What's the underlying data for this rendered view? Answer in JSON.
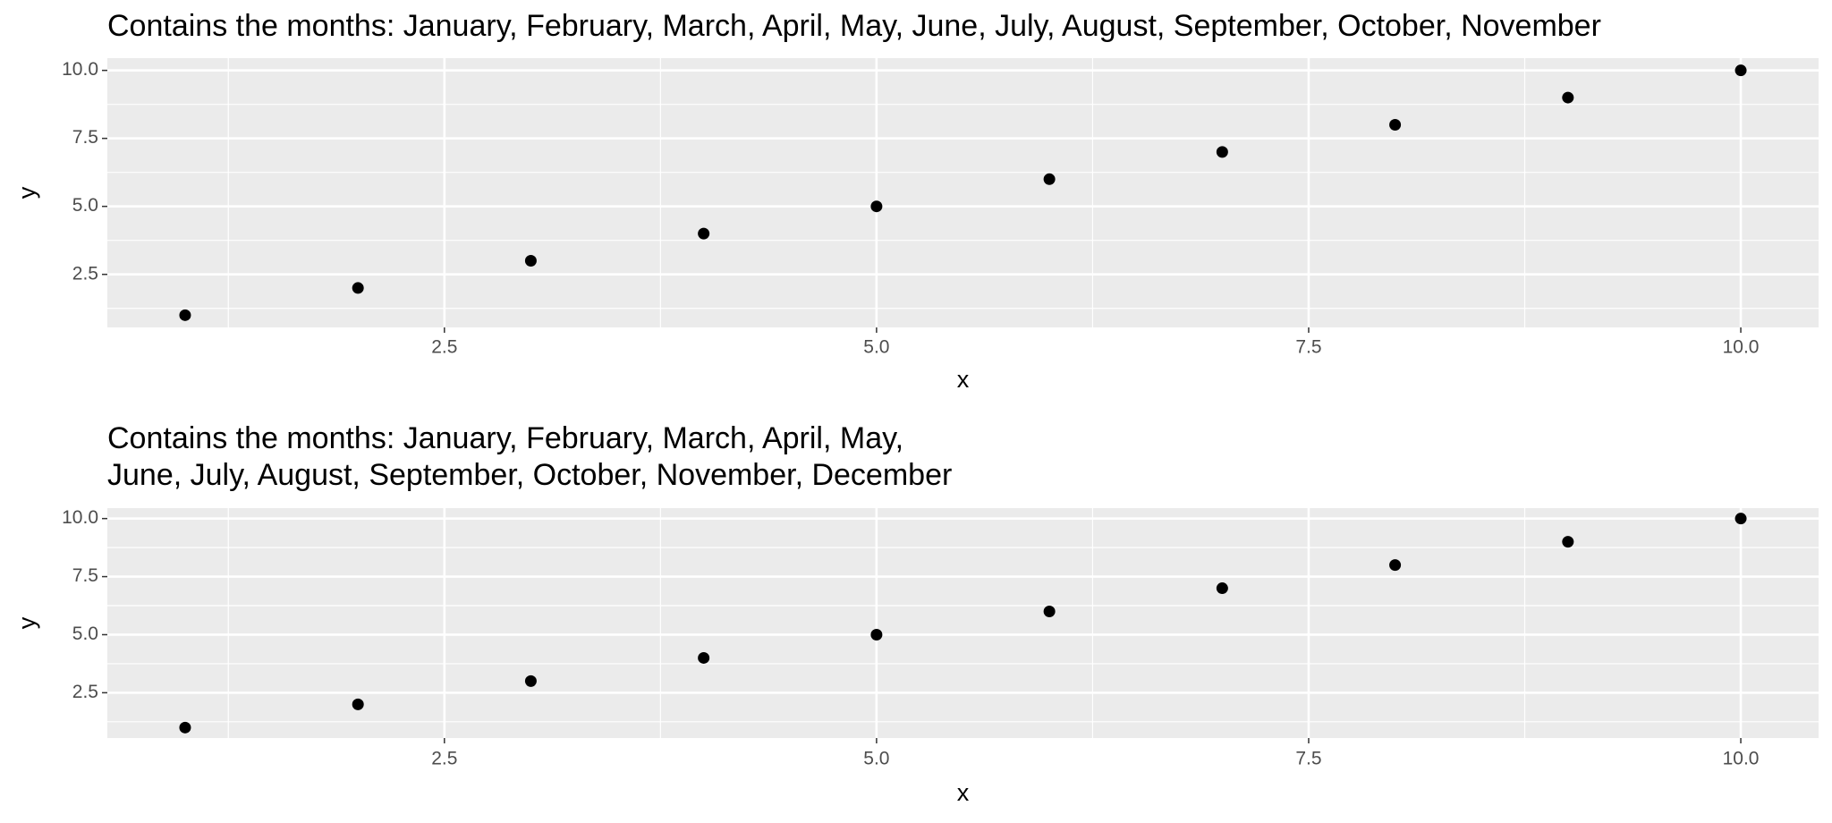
{
  "chart_data": [
    {
      "type": "scatter",
      "title": "Contains the months: January, February, March, April, May, June, July, August, September, October, November",
      "x_label": "x",
      "y_label": "y",
      "x": [
        1,
        2,
        3,
        4,
        5,
        6,
        7,
        8,
        9,
        10
      ],
      "series": [
        {
          "color": "#000000",
          "values": [
            1,
            2,
            3,
            4,
            5,
            6,
            7,
            8,
            9,
            10
          ]
        }
      ],
      "xlim": [
        0.55,
        10.45
      ],
      "ylim": [
        0.55,
        10.45
      ],
      "xticks": [
        2.5,
        {
          "value": 5,
          "label": "5.0"
        },
        7.5,
        {
          "value": 10,
          "label": "10.0"
        }
      ],
      "yticks": [
        2.5,
        {
          "value": 5,
          "label": "5.0"
        },
        7.5,
        {
          "value": 10,
          "label": "10.0"
        }
      ],
      "grid": true,
      "panel_color": "#ebebeb"
    },
    {
      "type": "scatter",
      "title": [
        "Contains the months: January, February, March, April, May,",
        " June, July, August, September, October, November, December"
      ],
      "x_label": "x",
      "y_label": "y",
      "x": [
        1,
        2,
        3,
        4,
        5,
        6,
        7,
        8,
        9,
        10
      ],
      "series": [
        {
          "color": "#000000",
          "values": [
            1,
            2,
            3,
            4,
            5,
            6,
            7,
            8,
            9,
            10
          ]
        }
      ],
      "xlim": [
        0.55,
        10.45
      ],
      "ylim": [
        0.55,
        10.45
      ],
      "xticks": [
        2.5,
        {
          "value": 5,
          "label": "5.0"
        },
        7.5,
        {
          "value": 10,
          "label": "10.0"
        }
      ],
      "yticks": [
        2.5,
        {
          "value": 5,
          "label": "5.0"
        },
        7.5,
        {
          "value": 10,
          "label": "10.0"
        }
      ],
      "grid": true,
      "panel_color": "#ebebeb"
    }
  ]
}
